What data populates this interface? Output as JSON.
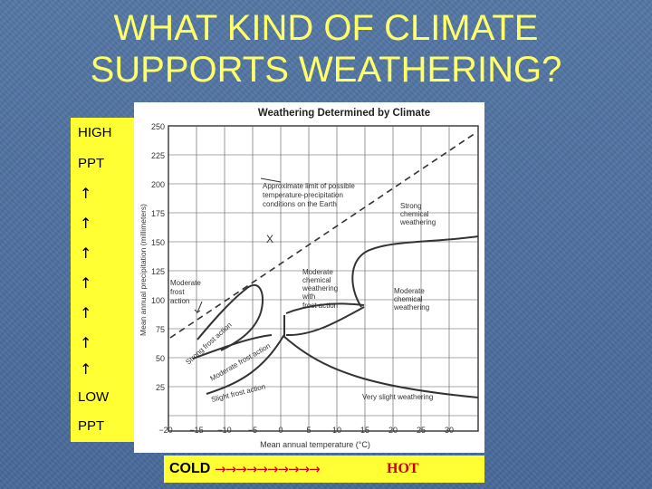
{
  "slide": {
    "title_line1": "WHAT KIND OF CLIMATE",
    "title_line2": "SUPPORTS  WEATHERING?"
  },
  "left_labels": {
    "high": "HIGH",
    "ppt_top": "PPT",
    "arrow": "↑",
    "low": "LOW",
    "ppt_bottom": "PPT"
  },
  "bottom_labels": {
    "cold": "COLD",
    "arrows": "→→→→→→→→→→",
    "hot": "HOT"
  },
  "colors": {
    "background": "#4a6e9c",
    "title": "#ffff66",
    "panel": "#ffff33",
    "hot_arrows": "#cc0000"
  },
  "figure": {
    "title": "Weathering Determined by Climate",
    "xlabel": "Mean annual temperature (°C)",
    "ylabel": "Mean annual precipitation (millimeters)",
    "x_ticks": [
      "−20",
      "−15",
      "−10",
      "−5",
      "0",
      "5",
      "10",
      "15",
      "20",
      "25",
      "30"
    ],
    "y_ticks": [
      "250",
      "225",
      "200",
      "175",
      "150",
      "125",
      "100",
      "75",
      "50",
      "25"
    ],
    "marker": "X",
    "annotations": {
      "limit": [
        "Approximate limit of possible",
        "temperature-precipitation",
        "conditions on the Earth"
      ],
      "strong_chem": [
        "Strong",
        "chemical",
        "weathering"
      ],
      "mod_frost": [
        "Moderate",
        "frost",
        "action"
      ],
      "mod_chem_frost": [
        "Moderate",
        "chemical",
        "weathering",
        "with",
        "frost action"
      ],
      "mod_chem": [
        "Moderate",
        "chemical",
        "weathering"
      ],
      "strong_frost": "Strong frost action",
      "mod_frost_diag": "Moderate frost action",
      "slight_frost": "Slight frost action",
      "very_slight": "Very slight weathering"
    }
  }
}
